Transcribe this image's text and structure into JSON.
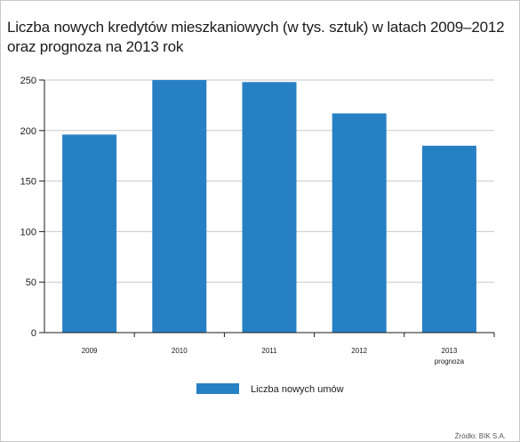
{
  "title": {
    "line1": "Liczba nowych kredytów mieszkaniowych (w tys. sztuk) w latach 2009–2012",
    "line2": "oraz prognoza na 2013 rok"
  },
  "source": "Źródło: BIK S.A.",
  "colors": {
    "bar": "#2880c4",
    "grid": "#c9c9c9",
    "axis": "#1b1b1b"
  },
  "chart_data": {
    "type": "bar",
    "categories": [
      "2009",
      "2010",
      "2011",
      "2012",
      "2013"
    ],
    "category_sublabels": [
      "",
      "",
      "",
      "",
      "prognoza"
    ],
    "series": [
      {
        "name": "Liczba nowych umów",
        "values": [
          196,
          250,
          248,
          217,
          185
        ]
      }
    ],
    "yticks": [
      0,
      50,
      100,
      150,
      200,
      250
    ],
    "ylim": [
      0,
      250
    ],
    "grid": true,
    "legend": "bottom-center"
  }
}
